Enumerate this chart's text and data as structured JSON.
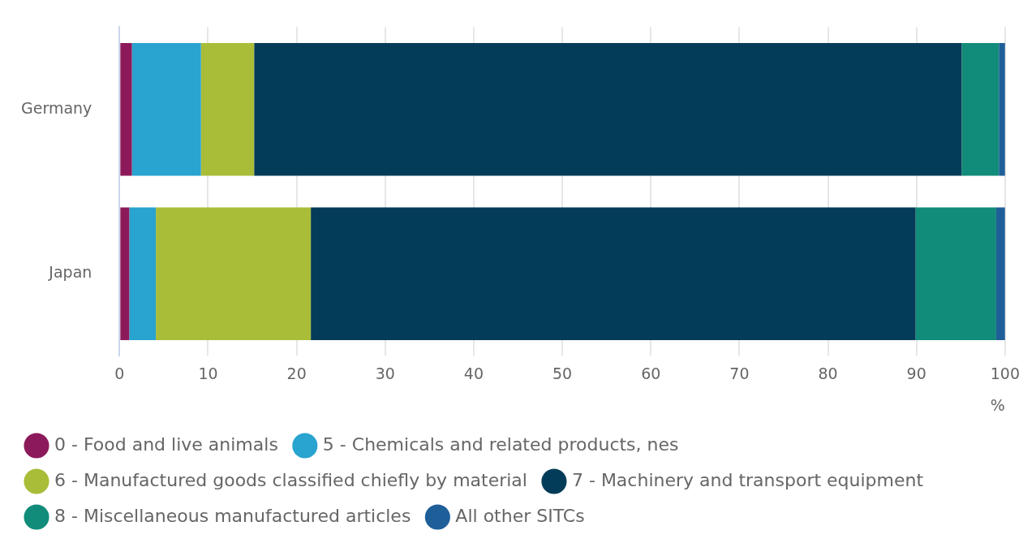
{
  "chart_data": {
    "type": "bar",
    "orientation": "horizontal",
    "stacked": true,
    "categories": [
      "Germany",
      "Japan"
    ],
    "series": [
      {
        "name": "0 - Food and live animals",
        "color": "#8c1a5a",
        "values": [
          1.4,
          1.1
        ]
      },
      {
        "name": "5 - Chemicals and related products, nes",
        "color": "#29a3d0",
        "values": [
          7.8,
          3.0
        ]
      },
      {
        "name": "6 - Manufactured goods classified chiefly by material",
        "color": "#a9bd38",
        "values": [
          6.0,
          17.5
        ]
      },
      {
        "name": "7 - Machinery and transport equipment",
        "color": "#033c58",
        "values": [
          79.9,
          68.3
        ]
      },
      {
        "name": "8 - Miscellaneous manufactured articles",
        "color": "#128c7a",
        "values": [
          4.2,
          9.1
        ]
      },
      {
        "name": "All other SITCs",
        "color": "#1f5f99",
        "values": [
          0.7,
          1.0
        ]
      }
    ],
    "xlim": [
      0,
      100
    ],
    "xticks": [
      0,
      10,
      20,
      30,
      40,
      50,
      60,
      70,
      80,
      90,
      100
    ],
    "xlabel": "%",
    "grid": "x",
    "legend": "bottom"
  }
}
